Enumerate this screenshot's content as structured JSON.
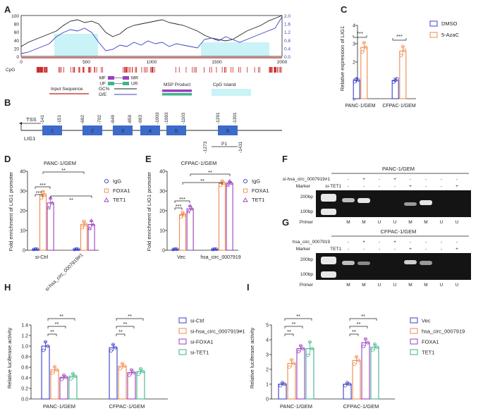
{
  "colors": {
    "blue": "#3a3fc9",
    "orange": "#f08a4b",
    "purple": "#9b3fc0",
    "green": "#3fb58a",
    "cpg": "#c81e1e",
    "island": "#c9f3f6",
    "gel_bg": "#141414"
  },
  "panel_labels": [
    "A",
    "B",
    "C",
    "D",
    "E",
    "F",
    "G",
    "H",
    "I"
  ],
  "panelA": {
    "x_ticks": [
      "0",
      "500",
      "1000",
      "1500",
      "2000"
    ],
    "left_ticks": [
      "100",
      "80",
      "60",
      "40",
      "20",
      "0"
    ],
    "right_ticks": [
      "2.0",
      "1.6",
      "1.2",
      "0.8",
      "0.4",
      "0.0"
    ],
    "cpg_label": "CpG",
    "primers": {
      "mf": "MF",
      "mr": "MR",
      "uf": "UF",
      "ur": "UR"
    },
    "legend": {
      "input": "Input Sequence",
      "gc": "GC%",
      "oe": "O/E",
      "msp": "MSP Product",
      "island": "CpG Island"
    }
  },
  "panelB": {
    "tss": "TSS",
    "gene": "LIG1",
    "exons": [
      "1",
      "2",
      "3",
      "4",
      "5",
      "6"
    ],
    "positions": [
      "-141",
      "-151",
      "-692",
      "-702",
      "-849",
      "-859",
      "-993",
      "-1003",
      "-1093",
      "-1103",
      "-1291",
      "-1301"
    ],
    "p1_label": "P1",
    "p1_left": "-1273",
    "p1_right": "-1411"
  },
  "panelC": {
    "ylabel": "Relative expression of LIG1",
    "y_ticks": [
      "0",
      "1",
      "2",
      "3",
      "4"
    ],
    "sig": [
      "***",
      "***"
    ],
    "legend": [
      "DMSO",
      "5-AzaC"
    ]
  },
  "panelD": {
    "title": "PANC-1/GEM",
    "ylabel": "Fold enrichment of LIG1 promoter",
    "y_ticks": [
      "0",
      "10",
      "20",
      "30",
      "40"
    ],
    "groups": [
      "si-Ctrl",
      "si-hsa_circ_0007919#1"
    ],
    "legend": [
      "IgG",
      "FOXA1",
      "TET1"
    ],
    "sig": [
      "***",
      "***",
      "**",
      "**"
    ]
  },
  "panelE": {
    "title": "CFPAC-1/GEM",
    "ylabel": "Fold enrichment of LIG1 promoter",
    "y_ticks": [
      "0",
      "10",
      "20",
      "30",
      "40"
    ],
    "groups": [
      "Vec",
      "hsa_circ_0007919"
    ],
    "legend": [
      "IgG",
      "FOXA1",
      "TET1"
    ],
    "sig": [
      "***",
      "***",
      "**",
      "**"
    ]
  },
  "panelF": {
    "title": "PANC-1/GEM",
    "row1_label": "si-hsa_circ_0007919#1",
    "row2_label": "si-TET1",
    "marker_label": "Marker",
    "row1": [
      "-",
      "+",
      "-",
      "+",
      "-",
      "-",
      "-",
      "-"
    ],
    "row2": [
      "-",
      "-",
      "-",
      "-",
      "+",
      "-",
      "-",
      "+"
    ],
    "size_200": "200bp",
    "size_100": "100bp",
    "primer_label": "Primer",
    "primers": [
      "M",
      "M",
      "U",
      "U",
      "M",
      "M",
      "U",
      "U"
    ]
  },
  "panelG": {
    "title": "CFPAC-1/GEM",
    "row1_label": "hsa_circ_0007919",
    "row2_label": "TET1",
    "marker_label": "Marker",
    "row1": [
      "-",
      "+",
      "-",
      "+",
      "-",
      "-",
      "-",
      "-"
    ],
    "row2": [
      "-",
      "-",
      "-",
      "-",
      "+",
      "-",
      "-",
      "+"
    ],
    "size_200": "200bp",
    "size_100": "100bp",
    "primer_label": "Primer",
    "primers": [
      "M",
      "M",
      "U",
      "U",
      "M",
      "M",
      "U",
      "U"
    ]
  },
  "panelH": {
    "ylabel": "Relative luciferase activity",
    "y_ticks": [
      "0.0",
      "0.2",
      "0.4",
      "0.6",
      "0.8",
      "1.0",
      "1.2",
      "1.4"
    ],
    "legend": [
      "si-Ctrl",
      "si-hsa_circ_0007919#1",
      "si-FOXA1",
      "si-TET1"
    ],
    "sig": [
      "**",
      "**",
      "**",
      "**",
      "**",
      "**"
    ]
  },
  "panelI": {
    "ylabel": "Relative luciferase activity",
    "y_ticks": [
      "0",
      "1",
      "2",
      "3",
      "4",
      "5"
    ],
    "legend": [
      "Vec",
      "hsa_circ_0007919",
      "FOXA1",
      "TET1"
    ],
    "sig": [
      "**",
      "**",
      "**",
      "**",
      "**",
      "**"
    ]
  },
  "chart_data": [
    {
      "id": "C",
      "type": "bar",
      "categories": [
        "PANC-1/GEM",
        "CFPAC-1/GEM"
      ],
      "ylabel": "Relative expression of LIG1",
      "ylim": [
        0,
        4
      ],
      "series": [
        {
          "name": "DMSO",
          "values": [
            1.0,
            1.0
          ],
          "err": [
            0.12,
            0.12
          ],
          "points": [
            [
              0.92,
              1.08,
              1.02
            ],
            [
              0.9,
              1.0,
              1.08
            ]
          ]
        },
        {
          "name": "5-AzaC",
          "values": [
            2.8,
            2.6
          ],
          "err": [
            0.25,
            0.25
          ],
          "points": [
            [
              2.55,
              3.05,
              2.8
            ],
            [
              2.35,
              2.85,
              2.65
            ]
          ]
        }
      ]
    },
    {
      "id": "D",
      "type": "bar",
      "title": "PANC-1/GEM",
      "categories": [
        "si-Ctrl",
        "si-hsa_circ_0007919#1"
      ],
      "ylabel": "Fold enrichment of LIG1 promoter",
      "ylim": [
        0,
        40
      ],
      "series": [
        {
          "name": "IgG",
          "values": [
            0.5,
            0.5
          ],
          "err": [
            0.2,
            0.2
          ],
          "points": [
            [
              0.4,
              0.6,
              0.5
            ],
            [
              0.4,
              0.6,
              0.5
            ]
          ]
        },
        {
          "name": "FOXA1",
          "values": [
            28,
            13
          ],
          "err": [
            1.8,
            1.5
          ],
          "points": [
            [
              26.5,
              29.5,
              28
            ],
            [
              11.5,
              14.5,
              13
            ]
          ]
        },
        {
          "name": "TET1",
          "values": [
            24,
            13
          ],
          "err": [
            2.5,
            2.0
          ],
          "points": [
            [
              21.5,
              26.5,
              24
            ],
            [
              11,
              15,
              13
            ]
          ]
        }
      ]
    },
    {
      "id": "E",
      "type": "bar",
      "title": "CFPAC-1/GEM",
      "categories": [
        "Vec",
        "hsa_circ_0007919"
      ],
      "ylabel": "Fold enrichment of LIG1 promoter",
      "ylim": [
        0,
        40
      ],
      "series": [
        {
          "name": "IgG",
          "values": [
            0.5,
            0.5
          ],
          "err": [
            0.2,
            0.2
          ],
          "points": [
            [
              0.4,
              0.6,
              0.5
            ],
            [
              0.4,
              0.6,
              0.5
            ]
          ]
        },
        {
          "name": "FOXA1",
          "values": [
            18,
            34
          ],
          "err": [
            1.0,
            1.0
          ],
          "points": [
            [
              17,
              19,
              18
            ],
            [
              33,
              35,
              34
            ]
          ]
        },
        {
          "name": "TET1",
          "values": [
            21,
            34
          ],
          "err": [
            1.5,
            1.0
          ],
          "points": [
            [
              19.5,
              22.5,
              21
            ],
            [
              33,
              35,
              34
            ]
          ]
        }
      ]
    },
    {
      "id": "H",
      "type": "bar",
      "categories": [
        "PANC-1/GEM",
        "CFPAC-1/GEM"
      ],
      "ylabel": "Relative luciferase activity",
      "ylim": [
        0,
        1.4
      ],
      "series": [
        {
          "name": "si-Ctrl",
          "values": [
            1.0,
            0.97
          ],
          "err": [
            0.08,
            0.06
          ],
          "points": [
            [
              0.92,
              1.08,
              1.0
            ],
            [
              0.91,
              1.03,
              0.97
            ]
          ]
        },
        {
          "name": "si-hsa_circ_0007919#1",
          "values": [
            0.55,
            0.62
          ],
          "err": [
            0.06,
            0.05
          ],
          "points": [
            [
              0.49,
              0.61,
              0.55
            ],
            [
              0.57,
              0.67,
              0.62
            ]
          ]
        },
        {
          "name": "si-FOXA1",
          "values": [
            0.41,
            0.5
          ],
          "err": [
            0.04,
            0.05
          ],
          "points": [
            [
              0.37,
              0.45,
              0.41
            ],
            [
              0.45,
              0.55,
              0.5
            ]
          ]
        },
        {
          "name": "si-TET1",
          "values": [
            0.43,
            0.52
          ],
          "err": [
            0.05,
            0.05
          ],
          "points": [
            [
              0.38,
              0.48,
              0.43
            ],
            [
              0.47,
              0.57,
              0.52
            ]
          ]
        }
      ]
    },
    {
      "id": "I",
      "type": "bar",
      "categories": [
        "PANC-1/GEM",
        "CFPAC-1/GEM"
      ],
      "ylabel": "Relative luciferase activity",
      "ylim": [
        0,
        5
      ],
      "series": [
        {
          "name": "Vec",
          "values": [
            1.0,
            1.0
          ],
          "err": [
            0.1,
            0.1
          ],
          "points": [
            [
              0.9,
              1.1,
              1.0
            ],
            [
              0.9,
              1.1,
              1.0
            ]
          ]
        },
        {
          "name": "hsa_circ_0007919",
          "values": [
            2.4,
            2.6
          ],
          "err": [
            0.25,
            0.25
          ],
          "points": [
            [
              2.15,
              2.65,
              2.4
            ],
            [
              2.35,
              2.85,
              2.6
            ]
          ]
        },
        {
          "name": "FOXA1",
          "values": [
            3.4,
            3.8
          ],
          "err": [
            0.2,
            0.25
          ],
          "points": [
            [
              3.2,
              3.6,
              3.4
            ],
            [
              3.55,
              4.05,
              3.8
            ]
          ]
        },
        {
          "name": "TET1",
          "values": [
            3.4,
            3.5
          ],
          "err": [
            0.45,
            0.2
          ],
          "points": [
            [
              2.95,
              3.85,
              3.4
            ],
            [
              3.3,
              3.7,
              3.5
            ]
          ]
        }
      ]
    }
  ]
}
